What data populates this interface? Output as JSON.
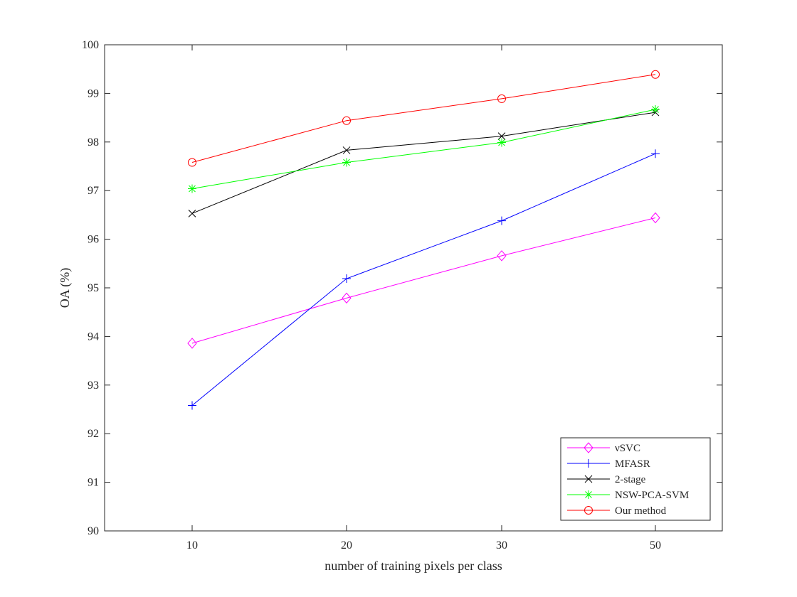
{
  "chart_data": {
    "type": "line",
    "title": "",
    "xlabel": "number of training pixels per class",
    "ylabel": "OA (%)",
    "categories": [
      "10",
      "20",
      "30",
      "50"
    ],
    "ylim": [
      90,
      100
    ],
    "yticks": [
      "90",
      "91",
      "92",
      "93",
      "94",
      "95",
      "96",
      "97",
      "98",
      "99",
      "100"
    ],
    "grid": false,
    "legend_position": "bottom-right",
    "series": [
      {
        "name": "νSVC",
        "color": "#ff00ff",
        "marker": "diamond",
        "values": [
          93.86,
          94.79,
          95.66,
          96.44
        ]
      },
      {
        "name": "MFASR",
        "color": "#0000ff",
        "marker": "plus",
        "values": [
          92.58,
          95.19,
          96.38,
          97.76
        ]
      },
      {
        "name": "2-stage",
        "color": "#000000",
        "marker": "x",
        "values": [
          96.53,
          97.83,
          98.12,
          98.61
        ]
      },
      {
        "name": "NSW-PCA-SVM",
        "color": "#00ff00",
        "marker": "asterisk",
        "values": [
          97.04,
          97.58,
          97.99,
          98.67
        ]
      },
      {
        "name": "Our method",
        "color": "#ff0000",
        "marker": "circle",
        "values": [
          97.58,
          98.44,
          98.89,
          99.39
        ]
      }
    ]
  }
}
